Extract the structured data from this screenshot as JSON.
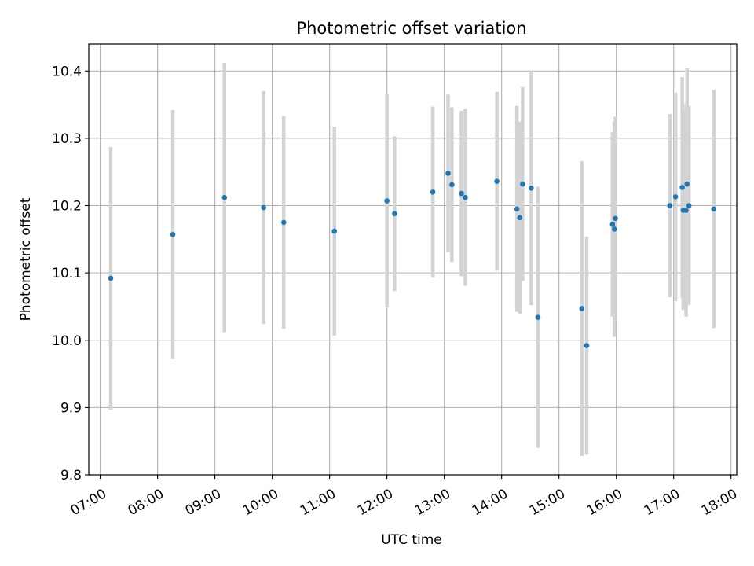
{
  "chart_data": {
    "type": "scatter",
    "title": "Photometric offset variation",
    "xlabel": "UTC time",
    "ylabel": "Photometric offset",
    "x_unit": "UTC time (HH:MM)",
    "xlim": [
      "06:48",
      "18:06"
    ],
    "ylim": [
      9.8,
      10.44
    ],
    "x_ticks": [
      "07:00",
      "08:00",
      "09:00",
      "10:00",
      "11:00",
      "12:00",
      "13:00",
      "14:00",
      "15:00",
      "16:00",
      "17:00",
      "18:00"
    ],
    "y_ticks": [
      "9.8",
      "9.9",
      "10.0",
      "10.1",
      "10.2",
      "10.3",
      "10.4"
    ],
    "grid": true,
    "point_color": "#1f77b4",
    "errorbar_color": "#d3d3d3",
    "series": [
      {
        "points": [
          {
            "x": "07:11",
            "y": 10.092,
            "err": 0.195
          },
          {
            "x": "08:16",
            "y": 10.157,
            "err": 0.185
          },
          {
            "x": "09:10",
            "y": 10.212,
            "err": 0.2
          },
          {
            "x": "09:51",
            "y": 10.197,
            "err": 0.173
          },
          {
            "x": "10:12",
            "y": 10.175,
            "err": 0.158
          },
          {
            "x": "11:05",
            "y": 10.162,
            "err": 0.155
          },
          {
            "x": "12:00",
            "y": 10.207,
            "err": 0.158
          },
          {
            "x": "12:08",
            "y": 10.188,
            "err": 0.115
          },
          {
            "x": "12:48",
            "y": 10.22,
            "err": 0.127
          },
          {
            "x": "13:04",
            "y": 10.248,
            "err": 0.117
          },
          {
            "x": "13:08",
            "y": 10.231,
            "err": 0.115
          },
          {
            "x": "13:18",
            "y": 10.218,
            "err": 0.123
          },
          {
            "x": "13:22",
            "y": 10.212,
            "err": 0.131
          },
          {
            "x": "13:55",
            "y": 10.236,
            "err": 0.133
          },
          {
            "x": "14:16",
            "y": 10.195,
            "err": 0.153
          },
          {
            "x": "14:19",
            "y": 10.182,
            "err": 0.143
          },
          {
            "x": "14:22",
            "y": 10.232,
            "err": 0.144
          },
          {
            "x": "14:31",
            "y": 10.226,
            "err": 0.174
          },
          {
            "x": "14:38",
            "y": 10.034,
            "err": 0.194
          },
          {
            "x": "15:24",
            "y": 10.047,
            "err": 0.219
          },
          {
            "x": "15:29",
            "y": 9.992,
            "err": 0.162
          },
          {
            "x": "15:56",
            "y": 10.172,
            "err": 0.137
          },
          {
            "x": "15:58",
            "y": 10.165,
            "err": 0.16
          },
          {
            "x": "15:59",
            "y": 10.181,
            "err": 0.151
          },
          {
            "x": "16:56",
            "y": 10.2,
            "err": 0.136
          },
          {
            "x": "17:02",
            "y": 10.213,
            "err": 0.155
          },
          {
            "x": "17:09",
            "y": 10.227,
            "err": 0.164
          },
          {
            "x": "17:10",
            "y": 10.193,
            "err": 0.148
          },
          {
            "x": "17:13",
            "y": 10.193,
            "err": 0.158
          },
          {
            "x": "17:14",
            "y": 10.232,
            "err": 0.172
          },
          {
            "x": "17:16",
            "y": 10.2,
            "err": 0.148
          },
          {
            "x": "17:42",
            "y": 10.195,
            "err": 0.177
          }
        ]
      }
    ]
  }
}
